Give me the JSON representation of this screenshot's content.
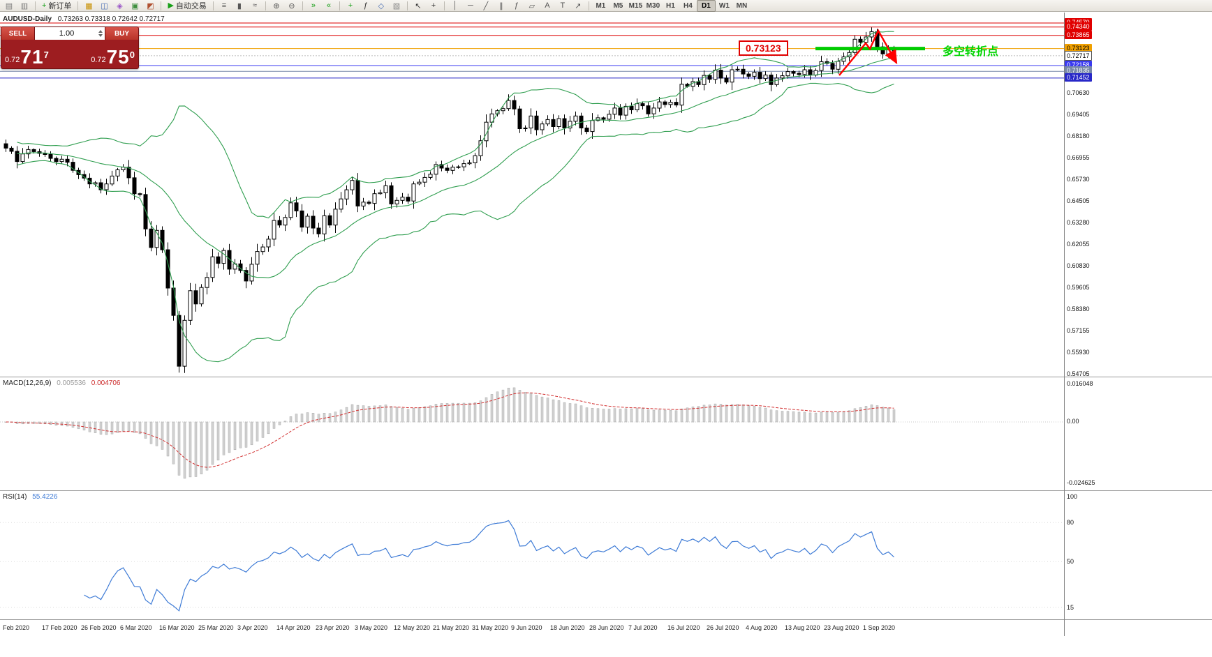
{
  "toolbar": {
    "groups": [
      {
        "name": "file-group",
        "items": [
          {
            "name": "new-chart-icon",
            "glyph": "▤",
            "color": "#7a7a7a"
          },
          {
            "name": "profiles-icon",
            "glyph": "▥",
            "color": "#7a7a7a"
          }
        ]
      },
      {
        "name": "order-group",
        "items": [
          {
            "name": "new-order-button",
            "glyph": "+",
            "glyph_color": "#18a018",
            "label": "新订单"
          }
        ]
      },
      {
        "name": "panels-group",
        "items": [
          {
            "name": "market-watch-icon",
            "glyph": "▦",
            "color": "#c89000"
          },
          {
            "name": "data-window-icon",
            "glyph": "◫",
            "color": "#4a6fb5"
          },
          {
            "name": "navigator-icon",
            "glyph": "◈",
            "color": "#9a55c8"
          },
          {
            "name": "terminal-icon",
            "glyph": "▣",
            "color": "#3f8f3f"
          },
          {
            "name": "strategy-tester-icon",
            "glyph": "◩",
            "color": "#b05030"
          }
        ]
      },
      {
        "name": "autotrade-group",
        "items": [
          {
            "name": "autotrading-button",
            "glyph": "▶",
            "glyph_color": "#18a018",
            "label": "自动交易"
          }
        ]
      },
      {
        "name": "chart-type-group",
        "items": [
          {
            "name": "bar-chart-icon",
            "glyph": "≡",
            "color": "#555555"
          },
          {
            "name": "candlestick-chart-icon",
            "glyph": "▮",
            "color": "#555555"
          },
          {
            "name": "line-chart-icon",
            "glyph": "≈",
            "color": "#555555"
          }
        ]
      },
      {
        "name": "zoom-group",
        "items": [
          {
            "name": "zoom-in-icon",
            "glyph": "⊕",
            "color": "#555555"
          },
          {
            "name": "zoom-out-icon",
            "glyph": "⊖",
            "color": "#555555"
          }
        ]
      },
      {
        "name": "scroll-group",
        "items": [
          {
            "name": "auto-scroll-icon",
            "glyph": "»",
            "color": "#18a018"
          },
          {
            "name": "chart-shift-icon",
            "glyph": "«",
            "color": "#18a018"
          }
        ]
      },
      {
        "name": "indicator-group",
        "items": [
          {
            "name": "add-indicator-icon",
            "glyph": "+",
            "color": "#18a018"
          },
          {
            "name": "indicators-list-icon",
            "glyph": "ƒ",
            "color": "#333333"
          },
          {
            "name": "periods-icon",
            "glyph": "◇",
            "color": "#4a6fb5"
          },
          {
            "name": "templates-icon",
            "glyph": "▧",
            "color": "#888888"
          }
        ]
      },
      {
        "name": "cursor-group",
        "items": [
          {
            "name": "cursor-icon",
            "glyph": "↖",
            "color": "#333333"
          },
          {
            "name": "crosshair-icon",
            "glyph": "+",
            "color": "#333333"
          }
        ]
      },
      {
        "name": "draw-group",
        "items": [
          {
            "name": "vertical-line-icon",
            "glyph": "│",
            "color": "#555555"
          },
          {
            "name": "horizontal-line-icon",
            "glyph": "─",
            "color": "#555555"
          },
          {
            "name": "trendline-icon",
            "glyph": "╱",
            "color": "#555555"
          },
          {
            "name": "channel-icon",
            "glyph": "∥",
            "color": "#555555"
          },
          {
            "name": "fibonacci-icon",
            "glyph": "ƒ",
            "color": "#555555"
          },
          {
            "name": "shapes-icon",
            "glyph": "▱",
            "color": "#555555"
          },
          {
            "name": "text-icon",
            "glyph": "A",
            "color": "#555555"
          },
          {
            "name": "label-icon",
            "glyph": "T",
            "color": "#555555"
          },
          {
            "name": "arrow-tool-icon",
            "glyph": "↗",
            "color": "#555555"
          }
        ]
      }
    ],
    "timeframes": [
      "M1",
      "M5",
      "M15",
      "M30",
      "H1",
      "H4",
      "D1",
      "W1",
      "MN"
    ],
    "active_timeframe": "D1"
  },
  "chart": {
    "title": "AUDUSD-Daily",
    "ohlc": "0.73263 0.73318 0.72642 0.72717"
  },
  "trade_panel": {
    "sell_label": "SELL",
    "buy_label": "BUY",
    "lot": "1.00",
    "sell_price_prefix": "0.72",
    "sell_price_big": "71",
    "sell_price_sup": "7",
    "buy_price_prefix": "0.72",
    "buy_price_big": "75",
    "buy_price_sup": "0"
  },
  "annotations": {
    "price_callout": "0.73123",
    "cn_label": "多空转折点",
    "green_line": {
      "level": 0.73123,
      "color": "#00cc00"
    },
    "arrow_color": "#ff0000"
  },
  "price_axis": {
    "ticks": [
      "0.70630",
      "0.69405",
      "0.68180",
      "0.66955",
      "0.65730",
      "0.64505",
      "0.63280",
      "0.62055",
      "0.60830",
      "0.59605",
      "0.58380",
      "0.57155",
      "0.55930",
      "0.54705"
    ],
    "marked": [
      {
        "label": "0.74570",
        "value": 0.7457,
        "bg": "#e00000",
        "fg": "#ffffff"
      },
      {
        "label": "0.74340",
        "value": 0.7434,
        "bg": "#e00000",
        "fg": "#ffffff"
      },
      {
        "label": "0.73865",
        "value": 0.73865,
        "bg": "#e00000",
        "fg": "#ffffff"
      },
      {
        "label": "0.73123",
        "value": 0.73123,
        "bg": "#f0a000",
        "fg": "#000000"
      },
      {
        "label": "0.72717",
        "value": 0.72717,
        "bg": "#ffffff",
        "fg": "#000000",
        "border": "#555555"
      },
      {
        "label": "0.72158",
        "value": 0.72158,
        "bg": "#3a3af0",
        "fg": "#ffffff"
      },
      {
        "label": "0.71835",
        "value": 0.71835,
        "bg": "#7788aa",
        "fg": "#ffffff"
      },
      {
        "label": "0.71452",
        "value": 0.71452,
        "bg": "#2828c8",
        "fg": "#ffffff"
      }
    ]
  },
  "main_lines": [
    {
      "value": 0.7457,
      "color": "#dd0000",
      "width": 1
    },
    {
      "value": 0.7434,
      "color": "#dd0000",
      "width": 1
    },
    {
      "value": 0.73865,
      "color": "#dd0000",
      "width": 1
    },
    {
      "value": 0.73123,
      "color": "#f0a000",
      "width": 1
    },
    {
      "value": 0.72717,
      "color": "#bbbbbb",
      "width": 1,
      "dash": "2 2"
    },
    {
      "value": 0.72158,
      "color": "#3a3af0",
      "width": 1
    },
    {
      "value": 0.71835,
      "color": "#7788aa",
      "width": 1
    },
    {
      "value": 0.71452,
      "color": "#2828c8",
      "width": 1
    }
  ],
  "macd": {
    "label": "MACD(12,26,9)",
    "value_main": "0.005536",
    "value_signal": "0.004706",
    "axis_top": "0.016048",
    "axis_zero": "0.00",
    "axis_bottom": "-0.024625"
  },
  "rsi": {
    "label": "RSI(14)",
    "value": "55.4226",
    "levels": [
      "100",
      "80",
      "50",
      "15"
    ]
  },
  "time_axis": [
    "Feb 2020",
    "17 Feb 2020",
    "26 Feb 2020",
    "6 Mar 2020",
    "16 Mar 2020",
    "25 Mar 2020",
    "3 Apr 2020",
    "14 Apr 2020",
    "23 Apr 2020",
    "3 May 2020",
    "12 May 2020",
    "21 May 2020",
    "31 May 2020",
    "9 Jun 2020",
    "18 Jun 2020",
    "28 Jun 2020",
    "7 Jul 2020",
    "16 Jul 2020",
    "26 Jul 2020",
    "4 Aug 2020",
    "13 Aug 2020",
    "23 Aug 2020",
    "1 Sep 2020"
  ],
  "chart_data": {
    "type": "candlestick",
    "symbol": "AUDUSD",
    "timeframe": "Daily",
    "title": "AUDUSD-Daily",
    "current_ohlc": {
      "open": 0.73263,
      "high": 0.73318,
      "low": 0.72642,
      "close": 0.72717
    },
    "y_axis_ticks": [
      0.7457,
      0.7434,
      0.73865,
      0.73123,
      0.72717,
      0.72158,
      0.71835,
      0.71452,
      0.7063,
      0.69405,
      0.6818,
      0.66955,
      0.6573,
      0.64505,
      0.6328,
      0.62055,
      0.6083,
      0.59605,
      0.5838,
      0.57155,
      0.5593,
      0.54705
    ],
    "x_axis_labels": [
      "Feb 2020",
      "17 Feb 2020",
      "26 Feb 2020",
      "6 Mar 2020",
      "16 Mar 2020",
      "25 Mar 2020",
      "3 Apr 2020",
      "14 Apr 2020",
      "23 Apr 2020",
      "3 May 2020",
      "12 May 2020",
      "21 May 2020",
      "31 May 2020",
      "9 Jun 2020",
      "18 Jun 2020",
      "28 Jun 2020",
      "7 Jul 2020",
      "16 Jul 2020",
      "26 Jul 2020",
      "4 Aug 2020",
      "13 Aug 2020",
      "23 Aug 2020",
      "1 Sep 2020"
    ],
    "indicators": [
      {
        "name": "Bollinger Bands(20,2)",
        "color": "green"
      },
      {
        "name": "MACD(12,26,9)",
        "values": [
          0.005536,
          0.004706
        ]
      },
      {
        "name": "RSI(14)",
        "value": 55.4226
      }
    ],
    "horizontal_levels": [
      0.7457,
      0.7434,
      0.73865,
      0.73123,
      0.72158,
      0.71835,
      0.71452
    ],
    "closes": [
      0.6748,
      0.673,
      0.6672,
      0.6715,
      0.674,
      0.6728,
      0.6718,
      0.6712,
      0.669,
      0.6672,
      0.6685,
      0.6668,
      0.6622,
      0.6598,
      0.6578,
      0.6545,
      0.6552,
      0.6512,
      0.6545,
      0.659,
      0.6625,
      0.664,
      0.658,
      0.649,
      0.6485,
      0.629,
      0.6185,
      0.6282,
      0.6172,
      0.5955,
      0.58,
      0.5512,
      0.5772,
      0.594,
      0.5865,
      0.5958,
      0.6015,
      0.6132,
      0.6095,
      0.6168,
      0.6062,
      0.6092,
      0.6055,
      0.5995,
      0.609,
      0.6162,
      0.6188,
      0.6232,
      0.6338,
      0.6312,
      0.6355,
      0.6438,
      0.6392,
      0.63,
      0.6362,
      0.6295,
      0.6262,
      0.6365,
      0.6312,
      0.6402,
      0.646,
      0.6512,
      0.6565,
      0.642,
      0.6442,
      0.6435,
      0.649,
      0.6495,
      0.6535,
      0.6432,
      0.6452,
      0.647,
      0.6448,
      0.6545,
      0.6555,
      0.6582,
      0.66,
      0.6655,
      0.6635,
      0.6622,
      0.664,
      0.6642,
      0.666,
      0.6665,
      0.6705,
      0.679,
      0.6895,
      0.6942,
      0.696,
      0.6972,
      0.7018,
      0.697,
      0.6858,
      0.6862,
      0.693,
      0.6852,
      0.6885,
      0.691,
      0.687,
      0.6915,
      0.6862,
      0.69,
      0.693,
      0.6862,
      0.6842,
      0.6905,
      0.692,
      0.6912,
      0.694,
      0.6975,
      0.6935,
      0.6985,
      0.6965,
      0.7,
      0.6988,
      0.6942,
      0.6975,
      0.701,
      0.6995,
      0.7008,
      0.6992,
      0.711,
      0.7098,
      0.7125,
      0.7108,
      0.716,
      0.7138,
      0.719,
      0.7145,
      0.7122,
      0.7192,
      0.7195,
      0.7168,
      0.7155,
      0.7178,
      0.7142,
      0.7162,
      0.7108,
      0.7145,
      0.7158,
      0.7182,
      0.7172,
      0.7165,
      0.7192,
      0.7162,
      0.7188,
      0.7238,
      0.7228,
      0.7195,
      0.724,
      0.7265,
      0.729,
      0.7365,
      0.7348,
      0.7378,
      0.7408,
      0.7322,
      0.7282,
      0.7305,
      0.72717
    ]
  }
}
